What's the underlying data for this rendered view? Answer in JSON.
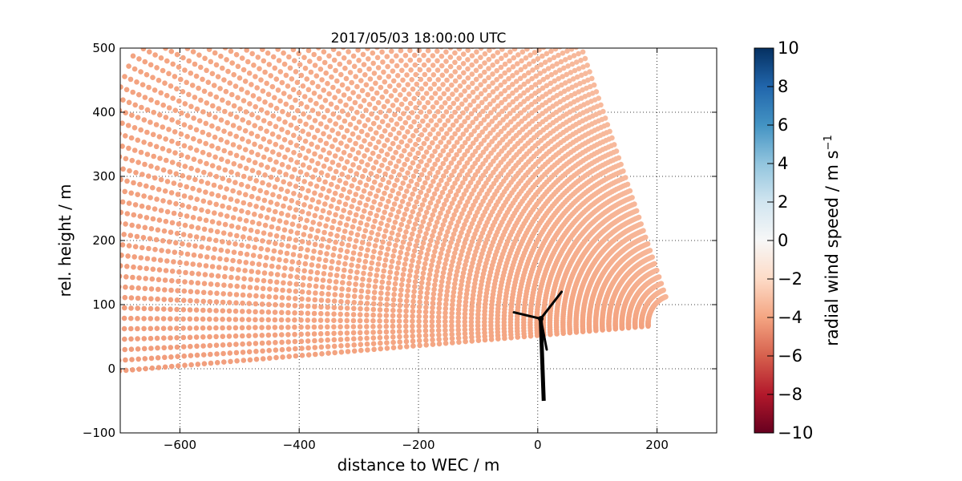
{
  "chart_data": {
    "type": "scatter",
    "title": "2017/05/03 18:00:00 UTC",
    "xlabel": "distance to WEC / m",
    "ylabel": "rel. height / m",
    "xlim": [
      -700,
      300
    ],
    "ylim": [
      -100,
      500
    ],
    "xticks": [
      -600,
      -400,
      -200,
      0,
      200
    ],
    "yticks": [
      -100,
      0,
      100,
      200,
      300,
      400,
      500
    ],
    "grid": true,
    "grid_style": "dotted",
    "scan": {
      "center": [
        230,
        70
      ],
      "inner_radius": 45,
      "outer_radius": 1000,
      "start_elevation_deg": -4.5,
      "max_elevation_deg": 70,
      "ranges": 88,
      "beams": 75,
      "value_range_m_s": [
        -4.5,
        -3.2
      ]
    },
    "turbine": {
      "tower_base": [
        10,
        -50
      ],
      "hub": [
        5,
        78
      ],
      "blades": [
        [
          -40,
          88
        ],
        [
          40,
          120
        ],
        [
          15,
          30
        ]
      ]
    },
    "colorbar": {
      "label": "radial wind speed / m s",
      "label_superscript": "−1",
      "vmin": -10,
      "vmax": 10,
      "ticks": [
        "10",
        "8",
        "6",
        "4",
        "2",
        "0",
        "−2",
        "−4",
        "−6",
        "−8",
        "−10"
      ],
      "colormap": [
        "#67001f",
        "#b2182b",
        "#d6604d",
        "#f4a582",
        "#fddbc7",
        "#f7f7f7",
        "#d1e5f0",
        "#92c5de",
        "#4393c3",
        "#2166ac",
        "#053061"
      ]
    }
  }
}
